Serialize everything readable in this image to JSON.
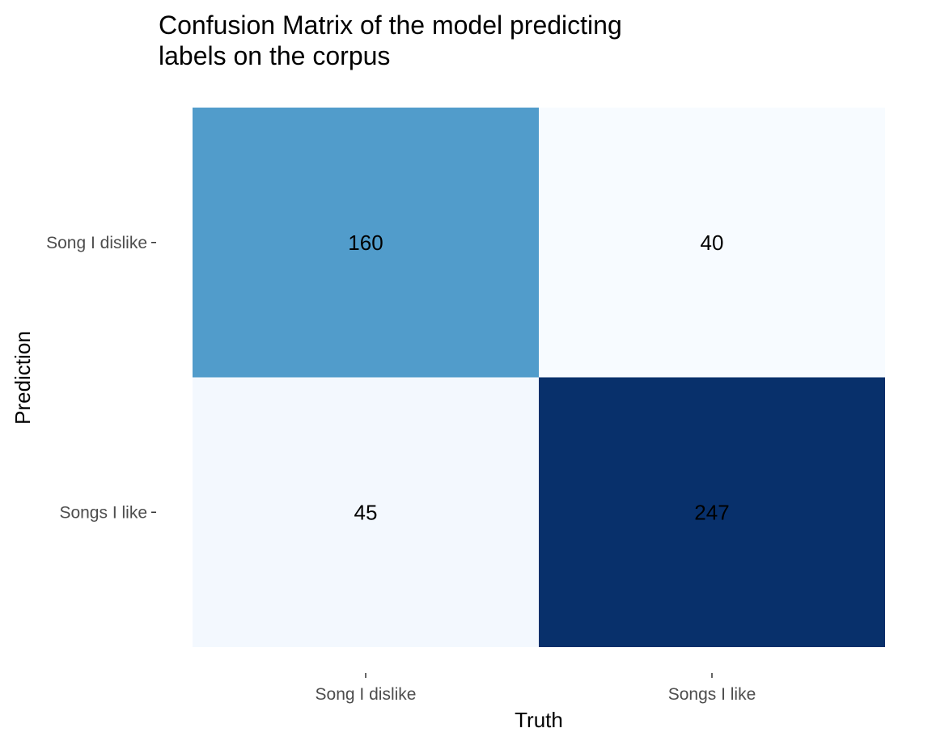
{
  "chart_data": {
    "type": "heatmap",
    "title_lines": [
      "Confusion Matrix of the model predicting",
      "labels on the corpus"
    ],
    "xlabel": "Truth",
    "ylabel": "Prediction",
    "x_categories": [
      "Song I dislike",
      "Songs I like"
    ],
    "y_categories": [
      "Song I dislike",
      "Songs I like"
    ],
    "cells": [
      {
        "truth": "Song I dislike",
        "prediction": "Song I dislike",
        "value": 160,
        "color": "#519CCB"
      },
      {
        "truth": "Songs I like",
        "prediction": "Song I dislike",
        "value": 40,
        "color": "#F7FBFF"
      },
      {
        "truth": "Song I dislike",
        "prediction": "Songs I like",
        "value": 45,
        "color": "#F3F8FE"
      },
      {
        "truth": "Songs I like",
        "prediction": "Songs I like",
        "value": 247,
        "color": "#08306B"
      }
    ],
    "color_scale": {
      "low": "#F7FBFF",
      "high": "#08306B"
    },
    "grid": false,
    "legend": "none"
  }
}
